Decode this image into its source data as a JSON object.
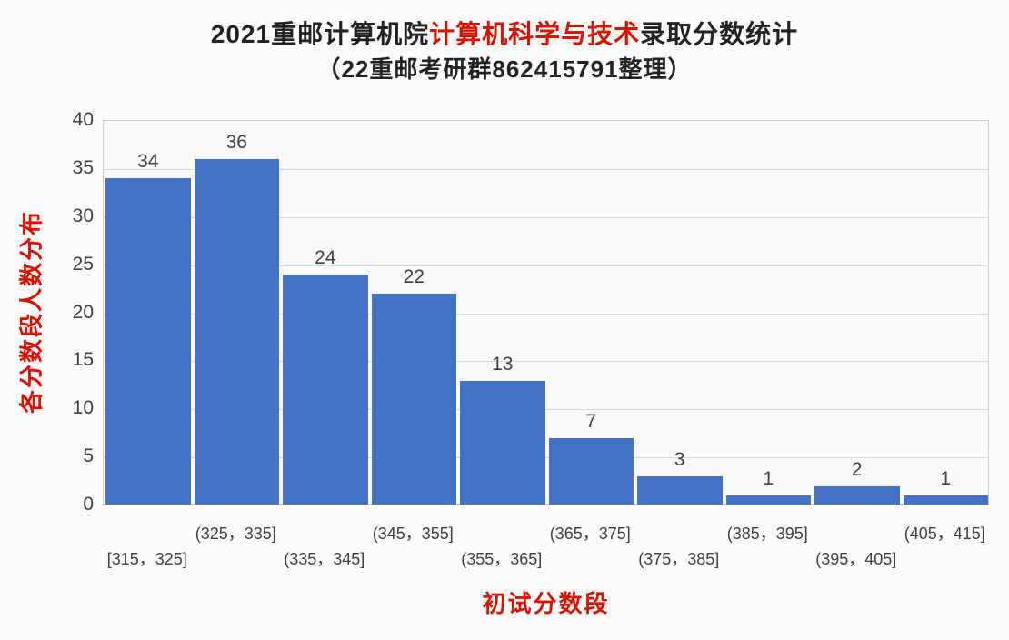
{
  "title": {
    "line1_prefix": "2021重邮计算机院",
    "line1_highlight": "计算机科学与技术",
    "line1_suffix": "录取分数统计",
    "line2": "（22重邮考研群862415791整理）"
  },
  "chart_data": {
    "type": "bar",
    "categories": [
      "[315，325]",
      "(325，335]",
      "(335，345]",
      "(345，355]",
      "(355，365]",
      "(365，375]",
      "(375，385]",
      "(385，395]",
      "(395，405]",
      "(405，415]"
    ],
    "values": [
      34,
      36,
      24,
      22,
      13,
      7,
      3,
      1,
      2,
      1
    ],
    "title": "2021重邮计算机院计算机科学与技术录取分数统计（22重邮考研群862415791整理）",
    "xlabel": "初试分数段",
    "ylabel": "各分数段人数分布",
    "ylim": [
      0,
      40
    ],
    "yticks": [
      0,
      5,
      10,
      15,
      20,
      25,
      30,
      35,
      40
    ],
    "grid": true,
    "legend": "none",
    "bar_color": "#4472c4",
    "value_label_color": "#3f3f3f",
    "axis_title_color": "#e01000"
  }
}
